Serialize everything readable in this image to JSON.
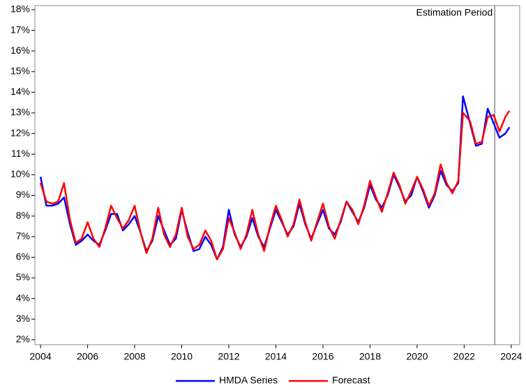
{
  "chart_data": {
    "type": "line",
    "x": [
      2004.0,
      2004.25,
      2004.5,
      2004.75,
      2005.0,
      2005.25,
      2005.5,
      2005.75,
      2006.0,
      2006.25,
      2006.5,
      2006.75,
      2007.0,
      2007.25,
      2007.5,
      2007.75,
      2008.0,
      2008.25,
      2008.5,
      2008.75,
      2009.0,
      2009.25,
      2009.5,
      2009.75,
      2010.0,
      2010.25,
      2010.5,
      2010.75,
      2011.0,
      2011.25,
      2011.5,
      2011.75,
      2012.0,
      2012.25,
      2012.5,
      2012.75,
      2013.0,
      2013.25,
      2013.5,
      2013.75,
      2014.0,
      2014.25,
      2014.5,
      2014.75,
      2015.0,
      2015.25,
      2015.5,
      2015.75,
      2016.0,
      2016.25,
      2016.5,
      2016.75,
      2017.0,
      2017.25,
      2017.5,
      2017.75,
      2018.0,
      2018.25,
      2018.5,
      2018.75,
      2019.0,
      2019.25,
      2019.5,
      2019.75,
      2020.0,
      2020.25,
      2020.5,
      2020.75,
      2021.0,
      2021.25,
      2021.5,
      2021.75,
      2021.95,
      2022.25,
      2022.5,
      2022.75,
      2023.0,
      2023.25,
      2023.5,
      2023.75,
      2023.92
    ],
    "series": [
      {
        "name": "HMDA Series",
        "color": "#0000ff",
        "values": [
          9.9,
          8.5,
          8.5,
          8.6,
          8.9,
          7.6,
          6.6,
          6.8,
          7.1,
          6.8,
          6.6,
          7.3,
          8.1,
          8.1,
          7.3,
          7.6,
          8.0,
          7.2,
          6.3,
          6.8,
          8.0,
          7.3,
          6.6,
          6.9,
          8.3,
          7.2,
          6.3,
          6.4,
          7.0,
          6.6,
          5.9,
          6.5,
          8.3,
          7.1,
          6.5,
          7.0,
          7.9,
          7.0,
          6.5,
          7.4,
          8.3,
          7.7,
          7.1,
          7.5,
          8.6,
          7.6,
          6.9,
          7.6,
          8.3,
          7.4,
          7.1,
          7.7,
          8.7,
          8.2,
          7.7,
          8.4,
          9.5,
          8.8,
          8.4,
          9.0,
          10.0,
          9.4,
          8.7,
          9.0,
          9.9,
          9.2,
          8.4,
          9.0,
          10.2,
          9.5,
          9.2,
          9.6,
          13.8,
          12.5,
          11.4,
          11.5,
          13.2,
          12.5,
          11.8,
          12.0,
          12.3
        ]
      },
      {
        "name": "Forecast",
        "color": "#ff0000",
        "values": [
          9.6,
          8.7,
          8.6,
          8.7,
          9.6,
          7.8,
          6.7,
          6.9,
          7.7,
          6.9,
          6.5,
          7.4,
          8.5,
          7.9,
          7.4,
          7.8,
          8.5,
          7.2,
          6.2,
          6.9,
          8.4,
          7.1,
          6.5,
          7.1,
          8.4,
          7.0,
          6.4,
          6.6,
          7.3,
          6.8,
          5.9,
          6.4,
          7.9,
          7.2,
          6.4,
          7.1,
          8.3,
          7.1,
          6.3,
          7.5,
          8.5,
          7.8,
          7.0,
          7.6,
          8.8,
          7.7,
          6.8,
          7.7,
          8.6,
          7.5,
          6.9,
          7.8,
          8.7,
          8.3,
          7.6,
          8.5,
          9.7,
          8.9,
          8.2,
          9.1,
          10.1,
          9.5,
          8.6,
          9.2,
          9.9,
          9.3,
          8.5,
          9.1,
          10.5,
          9.6,
          9.1,
          9.7,
          13.0,
          12.6,
          11.5,
          11.6,
          12.8,
          12.9,
          12.1,
          12.8,
          13.1
        ]
      }
    ],
    "xlim": [
      2003.76,
      2024.36
    ],
    "xticks": [
      2004,
      2006,
      2008,
      2010,
      2012,
      2014,
      2016,
      2018,
      2020,
      2022,
      2024
    ],
    "ylim": [
      1.76,
      18.2
    ],
    "yticks": [
      {
        "value": 2,
        "label": "2%"
      },
      {
        "value": 3,
        "label": "3%"
      },
      {
        "value": 4,
        "label": "4%"
      },
      {
        "value": 5,
        "label": "5%"
      },
      {
        "value": 6,
        "label": "6%"
      },
      {
        "value": 7,
        "label": "7%"
      },
      {
        "value": 8,
        "label": "8%"
      },
      {
        "value": 9,
        "label": "9%"
      },
      {
        "value": 10,
        "label": "10%"
      },
      {
        "value": 11,
        "label": "11%"
      },
      {
        "value": 12,
        "label": "12%"
      },
      {
        "value": 13,
        "label": "13%"
      },
      {
        "value": 14,
        "label": "14%"
      },
      {
        "value": 15,
        "label": "15%"
      },
      {
        "value": 16,
        "label": "16%"
      },
      {
        "value": 17,
        "label": "17%"
      },
      {
        "value": 18,
        "label": "18%"
      }
    ],
    "reference_line": {
      "x": 2023.3,
      "label": "Estimation Period"
    },
    "legend": "bottom"
  }
}
